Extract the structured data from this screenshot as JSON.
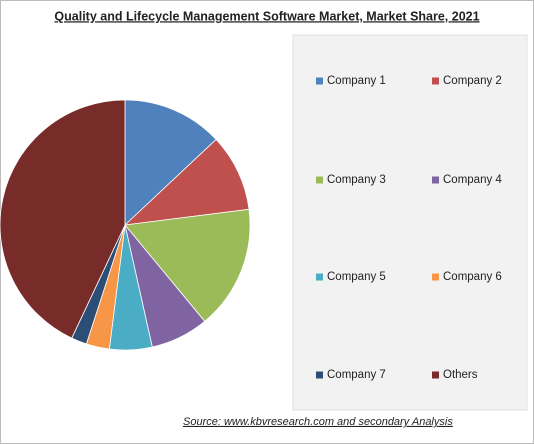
{
  "chart_data": {
    "type": "pie",
    "title": "Quality and Lifecycle Management Software Market, Market Share, 2021",
    "source": "Source:  www.kbvresearch.com  and secondary Analysis",
    "categories": [
      "Company 1",
      "Company 2",
      "Company 3",
      "Company 4",
      "Company 5",
      "Company 6",
      "Company 7",
      "Others"
    ],
    "values": [
      13,
      10,
      16,
      7.5,
      5.5,
      3,
      2,
      43
    ],
    "colors": [
      "#4f81bd",
      "#c0504d",
      "#9bbb59",
      "#8064a2",
      "#4bacc6",
      "#f79646",
      "#2c4d75",
      "#772c2a"
    ],
    "legend": "right"
  }
}
